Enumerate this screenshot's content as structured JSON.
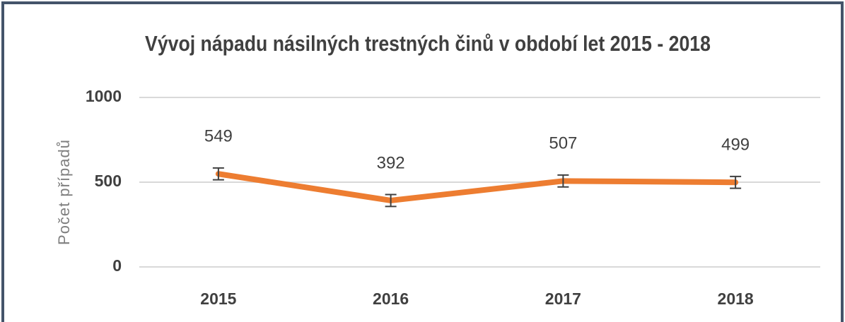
{
  "chart_data": {
    "type": "line",
    "title": "Vývoj nápadu násilných trestných činů v období let 2015 - 2018",
    "y_label": "Počet případů",
    "categories": [
      "2015",
      "2016",
      "2017",
      "2018"
    ],
    "series": [
      {
        "name": "Počet případů",
        "color": "#ed7d31",
        "values": [
          549,
          392,
          507,
          499
        ],
        "errors": [
          35,
          35,
          35,
          35
        ]
      }
    ],
    "ylim": [
      0,
      1000
    ],
    "yticks": [
      0,
      500,
      1000
    ],
    "grid": true
  }
}
